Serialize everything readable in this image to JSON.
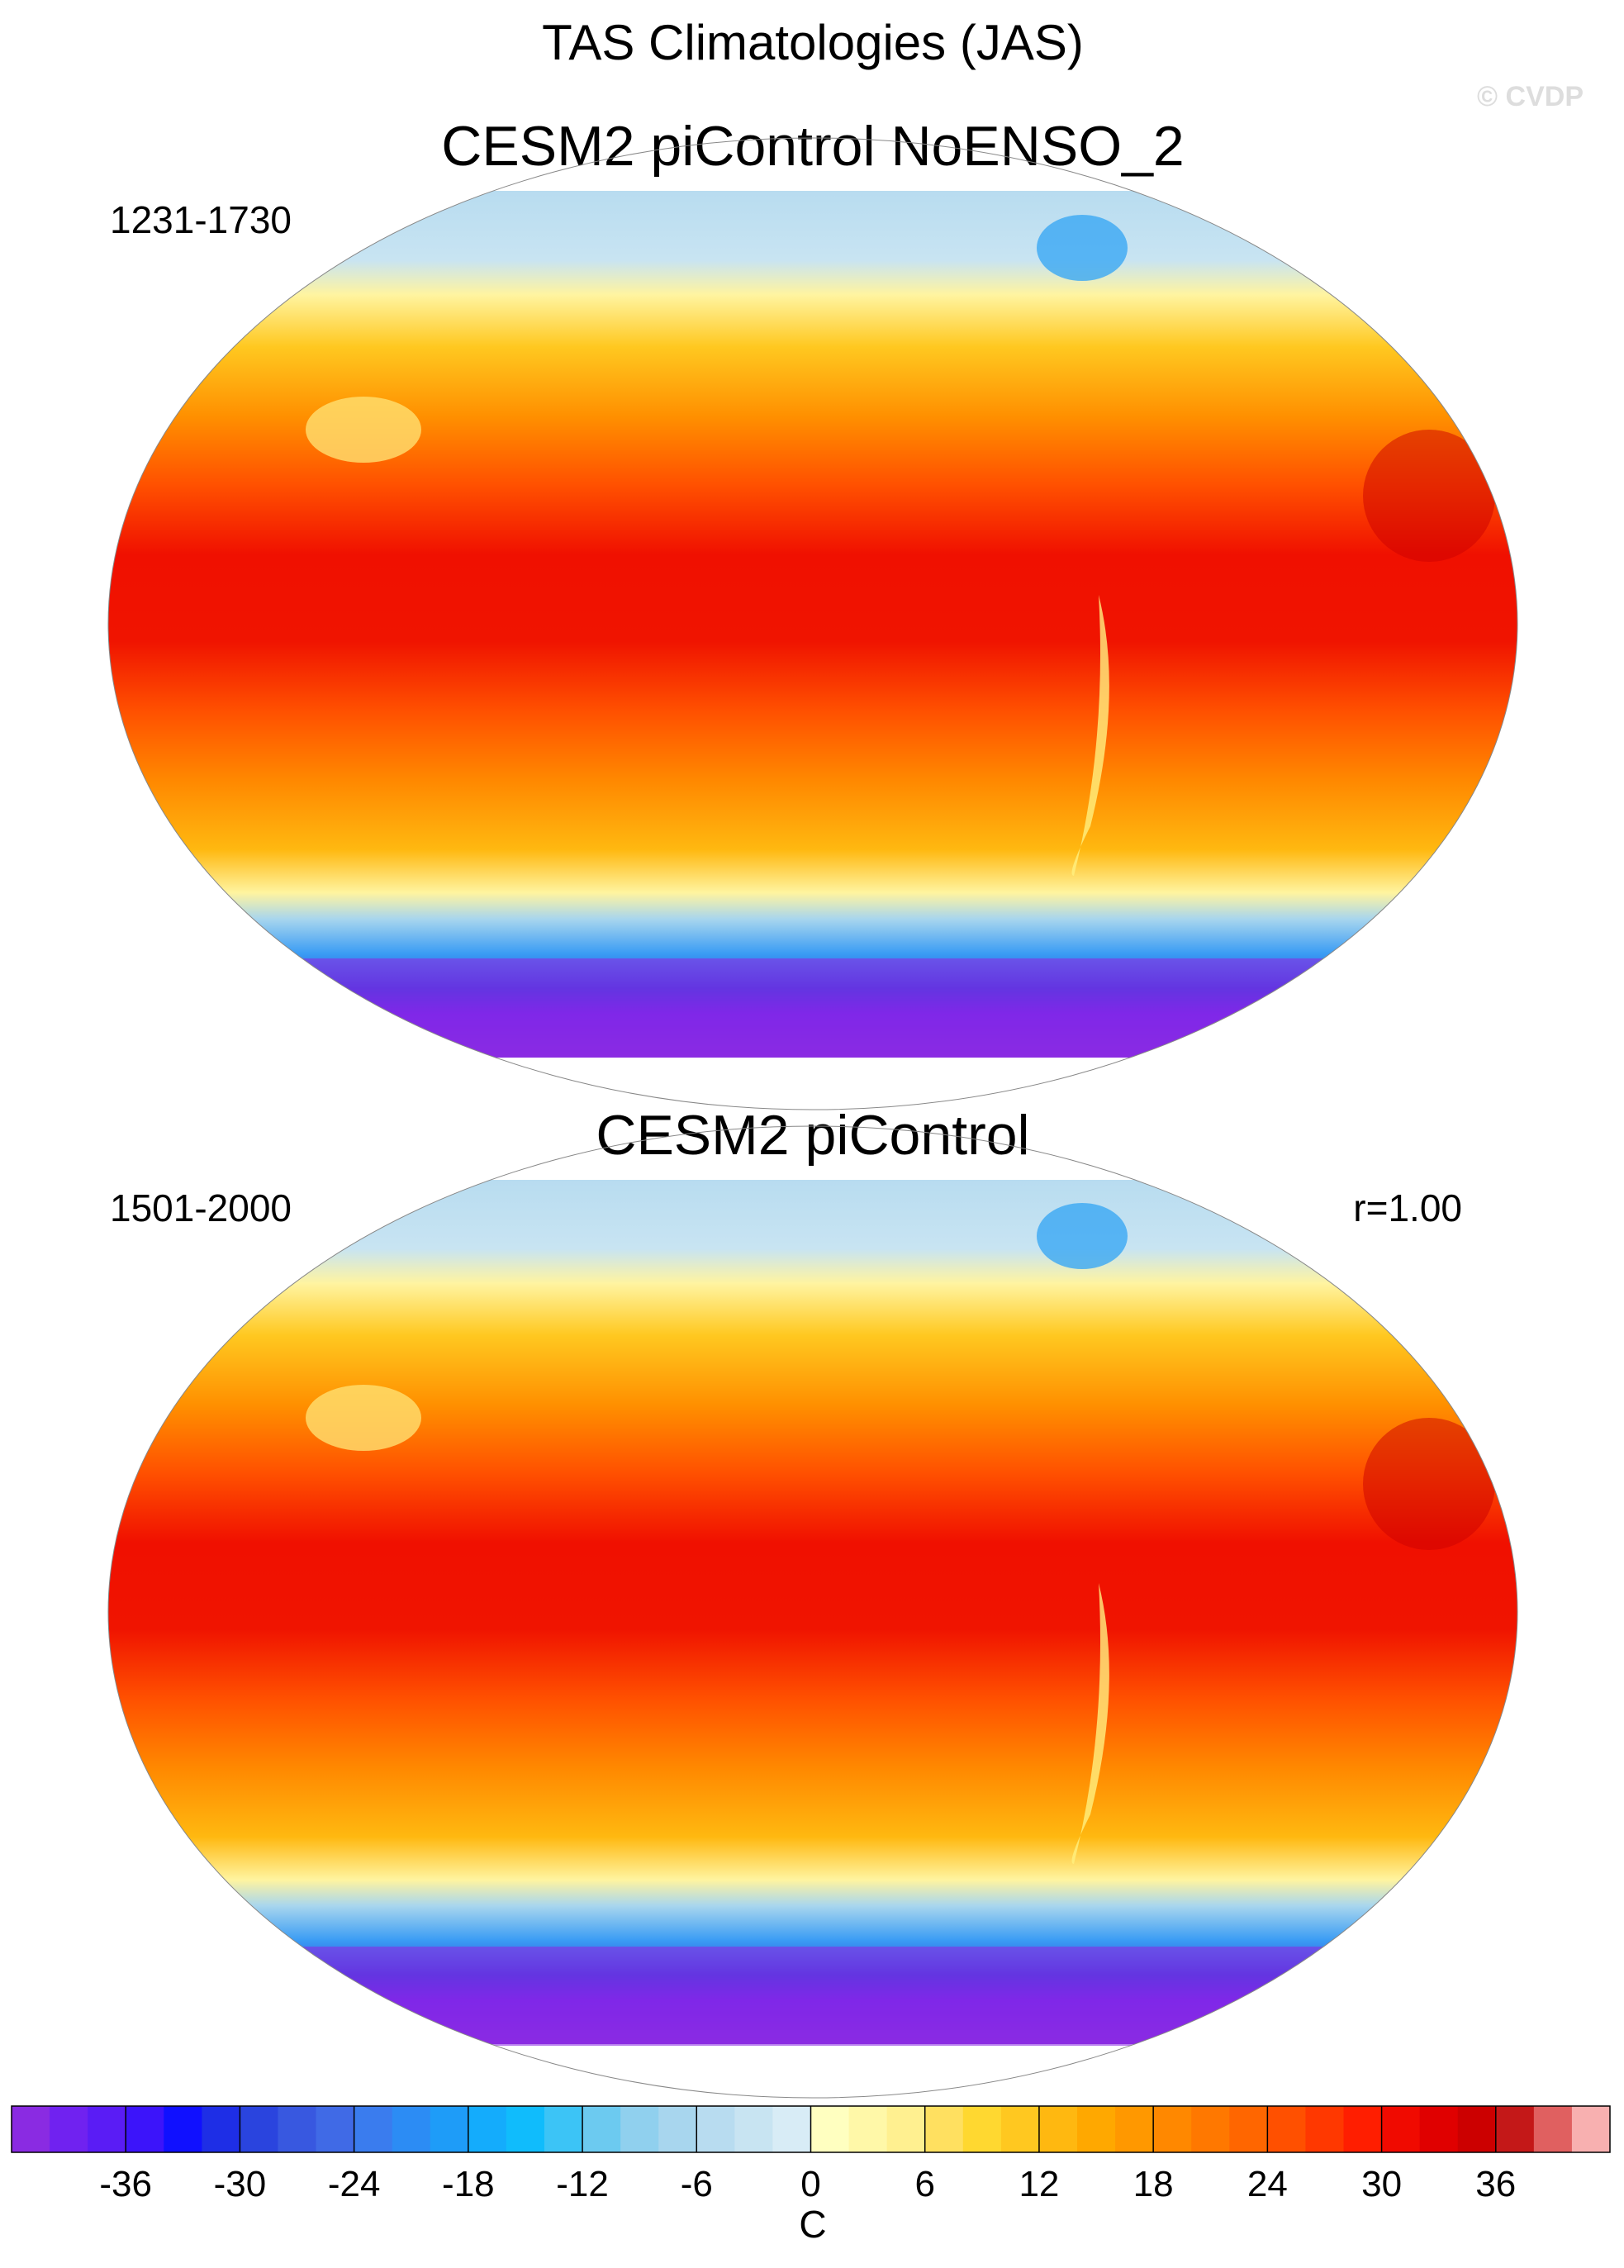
{
  "title": "TAS Climatologies (JAS)",
  "watermark": "© CVDP",
  "panels": [
    {
      "title": "CESM2 piControl NoENSO_2",
      "period": "1231-1730"
    },
    {
      "title": "CESM2 piControl",
      "period": "1501-2000",
      "stat": "r=1.00"
    }
  ],
  "colorbar": {
    "label": "C",
    "range": [
      -42,
      42
    ],
    "ticks": [
      -36,
      -30,
      -24,
      -18,
      -12,
      -6,
      0,
      6,
      12,
      18,
      24,
      30,
      36
    ],
    "colors": [
      "#8a2be2",
      "#7022f0",
      "#5a1cf5",
      "#3c14fa",
      "#1010ff",
      "#1e2ee6",
      "#2a44de",
      "#3858e0",
      "#406ae6",
      "#3a7cee",
      "#2c8cf4",
      "#1e9cf8",
      "#14acfc",
      "#10bcfc",
      "#3cc4f6",
      "#6ccaf0",
      "#90d0ee",
      "#a8d6ee",
      "#b8dcf0",
      "#c8e4f2",
      "#d8ecf6",
      "#ffffc0",
      "#fff8a8",
      "#fff090",
      "#ffe060",
      "#ffd830",
      "#ffc820",
      "#ffb810",
      "#ffa800",
      "#ff9800",
      "#ff8800",
      "#ff7800",
      "#ff6600",
      "#ff5000",
      "#ff3800",
      "#ff1e00",
      "#f00a00",
      "#e00000",
      "#cc0000",
      "#c41818",
      "#e06060",
      "#f8b0b0"
    ]
  }
}
